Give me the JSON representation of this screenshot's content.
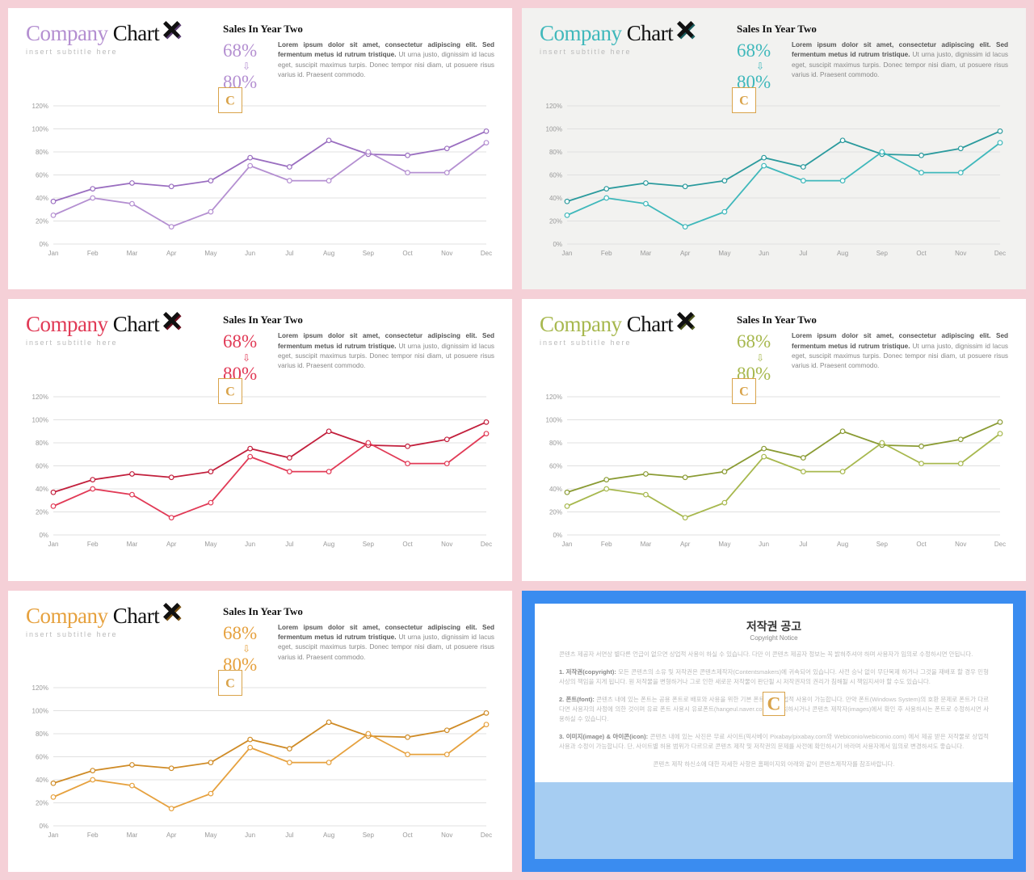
{
  "page_bg": "#f5d0d7",
  "variants": [
    {
      "bg": "#ffffff",
      "accent": "#b48fd1",
      "accent_dark": "#9a6ec0",
      "cross_shadow": "#5a3d72"
    },
    {
      "bg": "#f2f2f0",
      "accent": "#3fb8bb",
      "accent_dark": "#2a9a9d",
      "cross_shadow": "#1b5f60"
    },
    {
      "bg": "#ffffff",
      "accent": "#e13a56",
      "accent_dark": "#c21f3c",
      "cross_shadow": "#6a0f1f"
    },
    {
      "bg": "#ffffff",
      "accent": "#a7b84e",
      "accent_dark": "#8a9b33",
      "cross_shadow": "#4e5720"
    },
    {
      "bg": "#ffffff",
      "accent": "#e6a13e",
      "accent_dark": "#cf8b26",
      "cross_shadow": "#7a5214"
    }
  ],
  "title_word1": "Company",
  "title_word2": "Chart",
  "subtitle": "insert subtitle here",
  "sales_title": "Sales In Year Two",
  "pct1": "68%",
  "pct2": "80%",
  "arrow_char": "⇩",
  "description_bold": "Lorem ipsum dolor sit amet, consectetur adipiscing elit. Sed fermentum metus id rutrum tristique.",
  "description_rest": " Ut urna justo, dignissim id lacus eget, suscipit maximus turpis. Donec tempor nisi diam, ut posuere risus varius id. Praesent commodo.",
  "logo_letter": "C",
  "logo_colors": {
    "fill": "#d9a34a",
    "border": "#d9a34a"
  },
  "chart": {
    "ylabels": [
      "0%",
      "20%",
      "40%",
      "60%",
      "80%",
      "100%",
      "120%"
    ],
    "ylim": [
      0,
      120
    ],
    "ytick_step": 20,
    "xlabels": [
      "Jan",
      "Feb",
      "Mar",
      "Apr",
      "May",
      "Jun",
      "Jul",
      "Aug",
      "Sep",
      "Oct",
      "Nov",
      "Dec"
    ],
    "series1": [
      37,
      48,
      53,
      50,
      55,
      75,
      67,
      90,
      78,
      77,
      83,
      98
    ],
    "series2": [
      25,
      40,
      35,
      15,
      28,
      68,
      55,
      55,
      80,
      62,
      62,
      88
    ],
    "grid_color": "#e0e0e0",
    "text_color": "#999999",
    "line_width": 1.8,
    "marker_radius": 2.8
  },
  "copyright": {
    "border_color": "#3a8cf0",
    "lower_band_color": "#a6cdf2",
    "title": "저작권 공고",
    "subtitle": "Copyright Notice",
    "para_intro": "콘텐츠 제공자 서면상 별다른 언급이 없으면 상업적 사용이 하실 수 있습니다. 다만 이 콘텐츠 제공자 정보는 꼭 밝혀주셔야 하며 사용자가 임의로 수정하시면 안됩니다.",
    "para1_label": "1. 저작권(copyright):",
    "para1": " 모든 콘텐츠의 소유 및 저작권은 콘텐츠제작자(Contentsmakers)에 귀속되어 있습니다. 사전 승낙 없이 무단복제 하거나 그것을 재배포 할 경우 민형사상의 책임을 지게 됩니다. 원 저작물을 변형하거나 그로 인한 새로운 저작물이 판단될 시 저작권자의 권리가 침해될 시 책임지셔야 할 수도 있습니다.",
    "para2_label": "2. 폰트(font):",
    "para2": " 콘텐츠 내에 있는 폰트는 공용 폰트로 배포와 사용을 위한 기본 폰트이며 상업적 사용이 가능합니다. 만약 폰트(Windows System)의 호환 문제로 폰트가 다르다면 사용자의 사정에 의한 것이며 유료 폰트 사용시 유료폰트(hangeul.naver.com)를 설치하시거나 콘텐츠 제작자(images)에서 확인 후 사용하시는 폰트로 수정하시면 사용하실 수 있습니다.",
    "para3_label": "3. 이미지(image) & 아이콘(icon):",
    "para3": " 콘텐츠 내에 있는 사진은 무료 사이트(픽사베이 Pixabay/pixabay.com와 Webiconio/webiconio.com) 에서 제공 받은 저작물로 상업적 사용과 수정이 가능합니다. 단, 사이트별 허용 범위가 다르므로 콘텐츠 제작 및 저작권의 문제를 사전에 확인하시기 바라며 사용자께서 임의로 변경하셔도 좋습니다.",
    "para_footer": "콘텐츠 제작 하신소에 대한 자세한 사항은 홈페이지외 아래와 같이 콘텐츠제작자를 참조바랍니다."
  }
}
